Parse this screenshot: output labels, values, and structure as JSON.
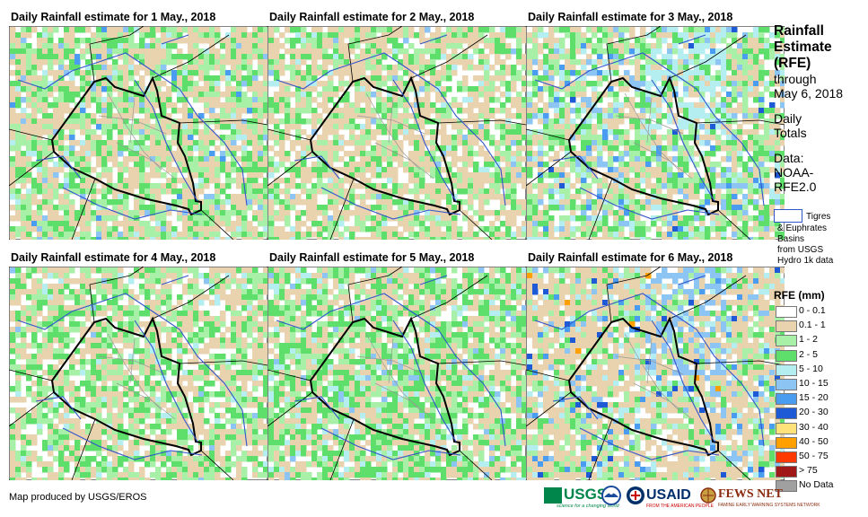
{
  "panels": [
    {
      "title": "Daily Rainfall estimate for 1 May., 2018"
    },
    {
      "title": "Daily Rainfall estimate for 2 May., 2018"
    },
    {
      "title": "Daily Rainfall estimate for 3 May., 2018"
    },
    {
      "title": "Daily Rainfall estimate for 4 May., 2018"
    },
    {
      "title": "Daily Rainfall estimate for 5 May., 2018"
    },
    {
      "title": "Daily Rainfall estimate for 6 May., 2018"
    }
  ],
  "sidebar": {
    "title_lines": [
      "Rainfall",
      "Estimate",
      "(RFE)"
    ],
    "through": "through",
    "date": "May 6, 2018",
    "daily": "Daily",
    "totals": "Totals",
    "data_label": "Data:",
    "data_source1": "NOAA-",
    "data_source2": "RFE2.0"
  },
  "basins": {
    "line1": "Tigres",
    "line2": "& Euphrates",
    "line3": "Basins",
    "line4": "from USGS",
    "line5": "Hydro 1k data"
  },
  "legend": {
    "title": "RFE (mm)",
    "items": [
      {
        "label": "0 - 0.1",
        "color": "#ffffff"
      },
      {
        "label": "0.1 - 1",
        "color": "#e8d3ae"
      },
      {
        "label": "1 - 2",
        "color": "#a8f0a8"
      },
      {
        "label": "2 - 5",
        "color": "#5ede6a"
      },
      {
        "label": "5 - 10",
        "color": "#b4eef0"
      },
      {
        "label": "10 - 15",
        "color": "#8cc4f4"
      },
      {
        "label": "15 - 20",
        "color": "#4a9cf0"
      },
      {
        "label": "20 - 30",
        "color": "#1f5ad6"
      },
      {
        "label": "30 - 40",
        "color": "#ffe27a"
      },
      {
        "label": "40 - 50",
        "color": "#ffa000"
      },
      {
        "label": "50 - 75",
        "color": "#ff3a00"
      },
      {
        "label": "> 75",
        "color": "#a01818"
      },
      {
        "label": "No Data",
        "color": "#a0a0a0"
      }
    ]
  },
  "footer": {
    "credit": "Map produced by USGS/EROS",
    "usgs": "USGS",
    "usgs_tag": "science for a changing world",
    "usaid": "USAID",
    "usaid_tag": "FROM THE AMERICAN PEOPLE",
    "fews": "FEWS NET",
    "fews_tag": "FAMINE EARLY WARNING SYSTEMS NETWORK"
  },
  "colors": {
    "basin": "#3355cc",
    "border": "#000000",
    "admin": "#999999"
  }
}
